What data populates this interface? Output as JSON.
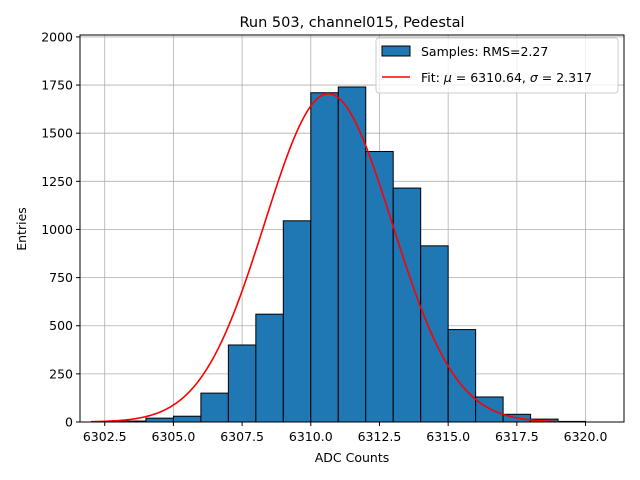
{
  "chart_data": {
    "type": "bar",
    "title": "Run 503, channel015, Pedestal",
    "xlabel": "ADC Counts",
    "ylabel": "Entries",
    "xlim": [
      6301.6,
      6321.4
    ],
    "ylim": [
      0,
      2010
    ],
    "grid": true,
    "legend_position": "top-right",
    "xticks": [
      6302.5,
      6305.0,
      6307.5,
      6310.0,
      6312.5,
      6315.0,
      6317.5,
      6320.0
    ],
    "xtick_labels": [
      "6302.5",
      "6305.0",
      "6307.5",
      "6310.0",
      "6312.5",
      "6315.0",
      "6317.5",
      "6320.0"
    ],
    "yticks": [
      0,
      250,
      500,
      750,
      1000,
      1250,
      1500,
      1750,
      2000
    ],
    "ytick_labels": [
      "0",
      "250",
      "500",
      "750",
      "1000",
      "1250",
      "1500",
      "1750",
      "2000"
    ],
    "histogram": {
      "name": "Samples: RMS=2.27",
      "color": "#1f77b4",
      "edgecolor": "#000000",
      "bin_edges": [
        6303,
        6304,
        6305,
        6306,
        6307,
        6308,
        6309,
        6310,
        6311,
        6312,
        6313,
        6314,
        6315,
        6316,
        6317,
        6318,
        6319,
        6320,
        6321
      ],
      "counts": [
        5,
        20,
        30,
        150,
        400,
        560,
        1045,
        1710,
        1740,
        1405,
        1215,
        915,
        480,
        130,
        40,
        15,
        3,
        0
      ]
    },
    "fit": {
      "name_prefix": "Fit: ",
      "name_mu": "μ",
      "name_mu_value": " = 6310.64, ",
      "name_sigma": "σ",
      "name_sigma_value": " = 2.317",
      "color": "#ff0000",
      "mu": 6310.64,
      "sigma": 2.317,
      "amplitude": 1705,
      "x_range": [
        6302.0,
        6319.0
      ]
    }
  }
}
